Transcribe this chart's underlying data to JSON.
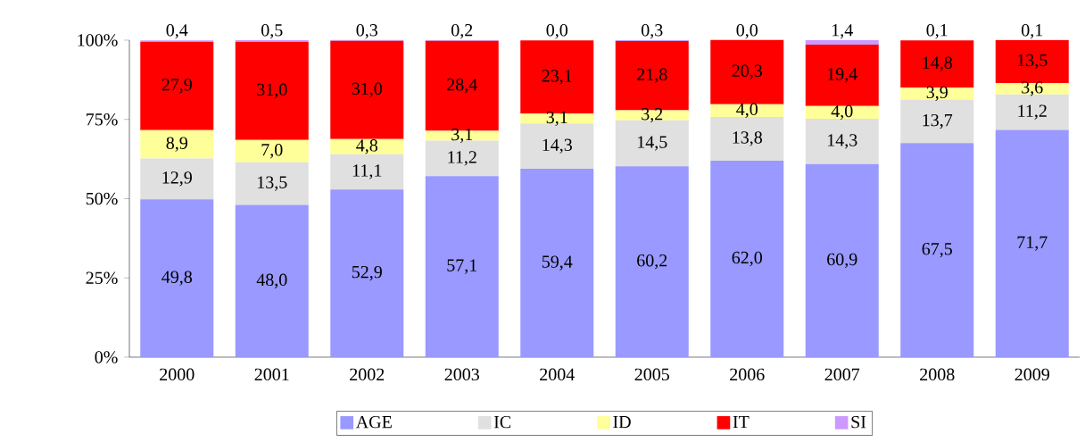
{
  "chart_data": {
    "type": "bar",
    "stacked": true,
    "legend": "bottom",
    "categories": [
      "2000",
      "2001",
      "2002",
      "2003",
      "2004",
      "2005",
      "2006",
      "2007",
      "2008",
      "2009"
    ],
    "ylim": [
      0,
      100
    ],
    "yticks": [
      {
        "value": 0,
        "label": "0%"
      },
      {
        "value": 25,
        "label": "25%"
      },
      {
        "value": 50,
        "label": "50%"
      },
      {
        "value": 75,
        "label": "75%"
      },
      {
        "value": 100,
        "label": "100%"
      }
    ],
    "series": [
      {
        "name": "AGE",
        "color": "#9999ff",
        "values": [
          49.8,
          48.0,
          52.9,
          57.1,
          59.4,
          60.2,
          62.0,
          60.9,
          67.5,
          71.7
        ],
        "value_labels": [
          "49,8",
          "48,0",
          "52,9",
          "57,1",
          "59,4",
          "60,2",
          "62,0",
          "60,9",
          "67,5",
          "71,7"
        ]
      },
      {
        "name": "IC",
        "color": "#e0e0e0",
        "values": [
          12.9,
          13.5,
          11.1,
          11.2,
          14.3,
          14.5,
          13.8,
          14.3,
          13.7,
          11.2
        ],
        "value_labels": [
          "12,9",
          "13,5",
          "11,1",
          "11,2",
          "14,3",
          "14,5",
          "13,8",
          "14,3",
          "13,7",
          "11,2"
        ]
      },
      {
        "name": "ID",
        "color": "#ffff99",
        "values": [
          8.9,
          7.0,
          4.8,
          3.1,
          3.1,
          3.2,
          4.0,
          4.0,
          3.9,
          3.6
        ],
        "value_labels": [
          "8,9",
          "7,0",
          "4,8",
          "3,1",
          "3,1",
          "3,2",
          "4,0",
          "4,0",
          "3,9",
          "3,6"
        ]
      },
      {
        "name": "IT",
        "color": "#ff0000",
        "values": [
          27.9,
          31.0,
          31.0,
          28.4,
          23.1,
          21.8,
          20.3,
          19.4,
          14.8,
          13.5
        ],
        "value_labels": [
          "27,9",
          "31,0",
          "31,0",
          "28,4",
          "23,1",
          "21,8",
          "20,3",
          "19,4",
          "14,8",
          "13,5"
        ]
      },
      {
        "name": "SI",
        "color": "#cc99ff",
        "values": [
          0.4,
          0.5,
          0.3,
          0.2,
          0.0,
          0.3,
          0.0,
          1.4,
          0.1,
          0.1
        ],
        "value_labels": [
          "0,4",
          "0,5",
          "0,3",
          "0,2",
          "0,0",
          "0,3",
          "0,0",
          "1,4",
          "0,1",
          "0,1"
        ]
      }
    ]
  }
}
